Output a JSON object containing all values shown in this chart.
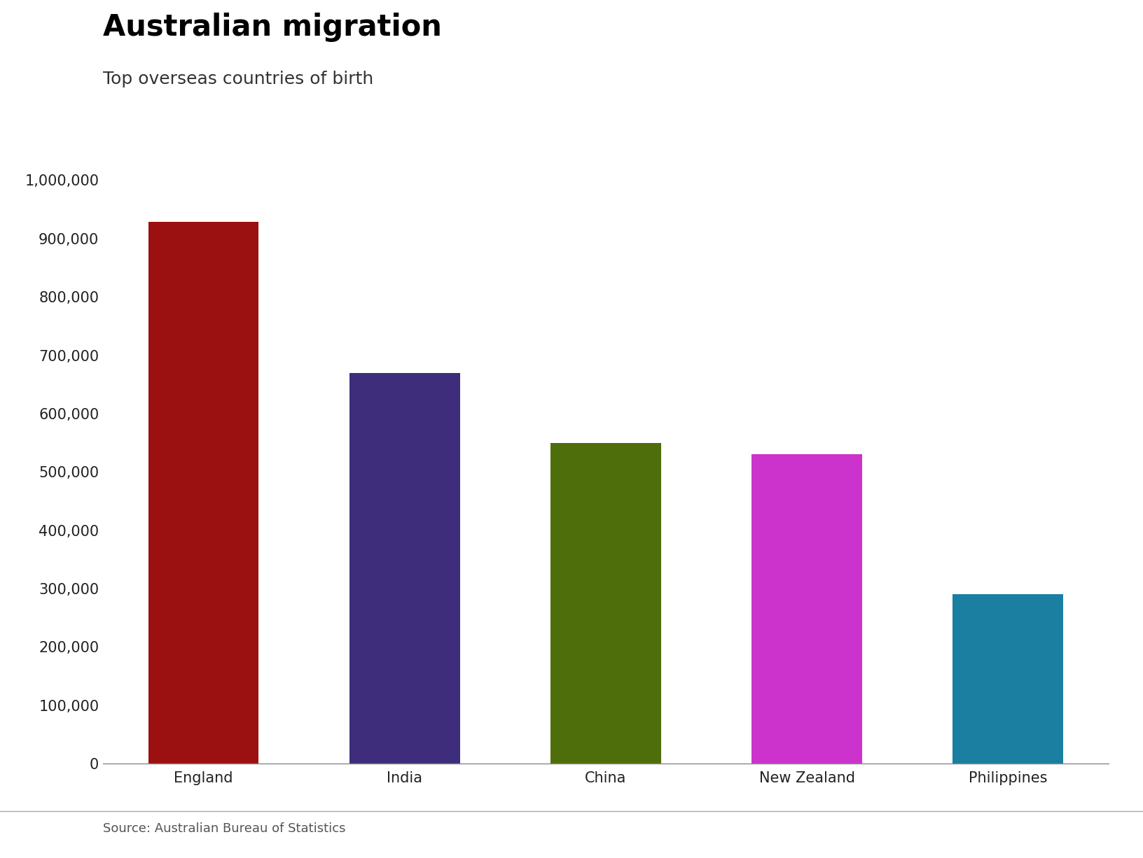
{
  "title": "Australian migration",
  "subtitle": "Top overseas countries of birth",
  "source": "Source: Australian Bureau of Statistics",
  "categories": [
    "England",
    "India",
    "China",
    "New Zealand",
    "Philippines"
  ],
  "values": [
    928000,
    670000,
    550000,
    530000,
    290000
  ],
  "bar_colors": [
    "#9b1010",
    "#3d2d7a",
    "#4d6e0a",
    "#cc33cc",
    "#1a7fa0"
  ],
  "ylim": [
    0,
    1000000
  ],
  "yticks": [
    0,
    100000,
    200000,
    300000,
    400000,
    500000,
    600000,
    700000,
    800000,
    900000,
    1000000
  ],
  "background_color": "#ffffff",
  "title_fontsize": 30,
  "subtitle_fontsize": 18,
  "source_fontsize": 13,
  "tick_fontsize": 15,
  "bar_width": 0.55
}
